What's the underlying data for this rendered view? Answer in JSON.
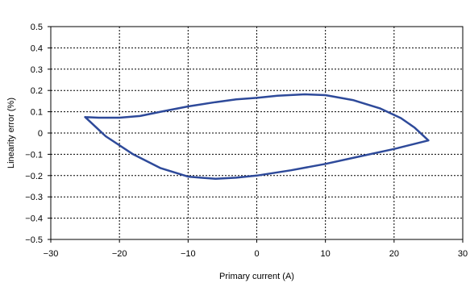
{
  "chart_data": {
    "type": "line",
    "xlabel": "Primary current (A)",
    "ylabel": "Linearity error (%)",
    "xlim": [
      -30,
      30
    ],
    "ylim": [
      -0.5,
      0.5
    ],
    "x_ticks": [
      -30,
      -20,
      -10,
      0,
      10,
      20,
      30
    ],
    "x_tick_labels": [
      "−30",
      "−20",
      "−10",
      "0",
      "10",
      "20",
      "30"
    ],
    "y_ticks": [
      0.5,
      0.4,
      0.3,
      0.2,
      0.1,
      0,
      -0.1,
      -0.2,
      -0.3,
      -0.4,
      -0.5
    ],
    "y_tick_labels": [
      "0.5",
      "0.4",
      "0.3",
      "0.2",
      "0.1",
      "0",
      "−0.1",
      "−0.2",
      "−0.3",
      "−0.4",
      "−0.5"
    ],
    "grid": true,
    "series_color": "#2e4a9a",
    "series": [
      {
        "x": [
          -25,
          -23,
          -20,
          -17,
          -14,
          -10,
          -6,
          -3,
          0,
          3,
          7,
          10,
          14,
          18,
          21,
          23,
          25,
          20,
          15,
          10,
          5,
          0,
          -3,
          -6,
          -10,
          -14,
          -18,
          -22,
          -25
        ],
        "y": [
          0.075,
          0.072,
          0.072,
          0.08,
          0.1,
          0.125,
          0.145,
          0.158,
          0.165,
          0.175,
          0.182,
          0.178,
          0.155,
          0.115,
          0.07,
          0.025,
          -0.035,
          -0.075,
          -0.11,
          -0.145,
          -0.175,
          -0.2,
          -0.21,
          -0.215,
          -0.205,
          -0.165,
          -0.1,
          -0.015,
          0.075
        ]
      }
    ]
  }
}
